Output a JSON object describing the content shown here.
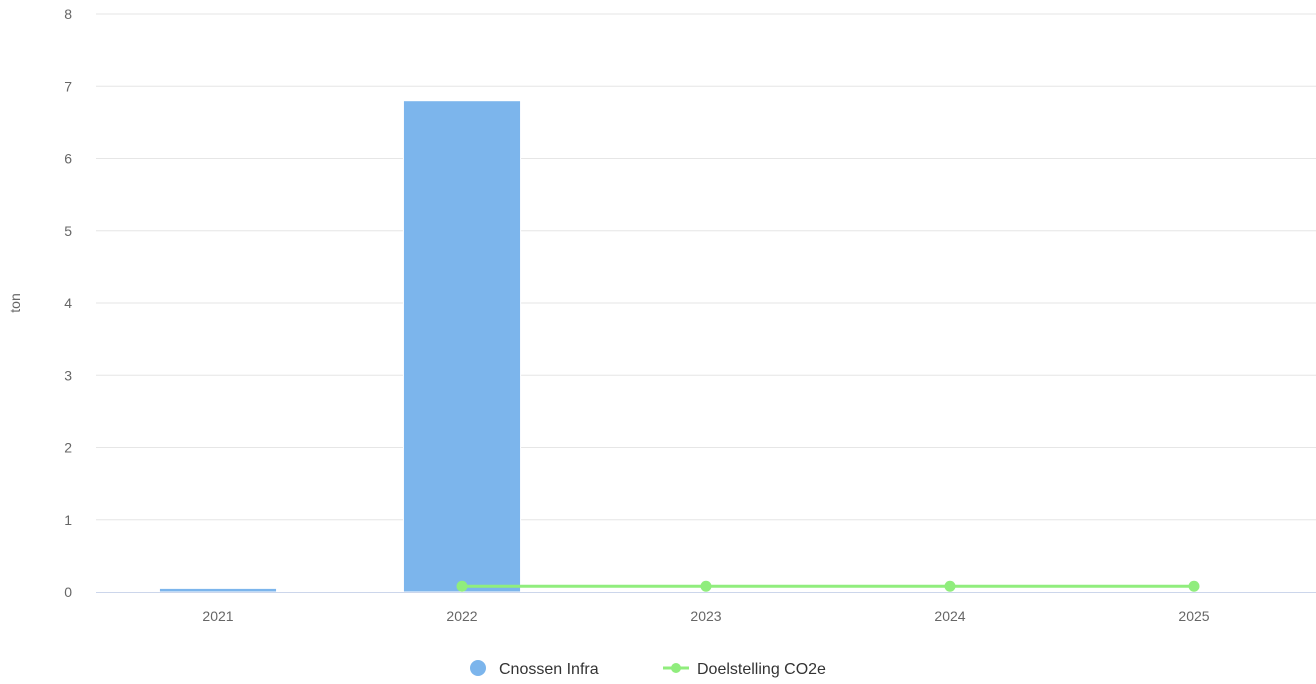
{
  "chart_data": {
    "type": "bar",
    "title": "",
    "xlabel": "",
    "ylabel": "ton",
    "ylim": [
      0,
      8
    ],
    "yticks": [
      0,
      1,
      2,
      3,
      4,
      5,
      6,
      7,
      8
    ],
    "categories": [
      "2021",
      "2022",
      "2023",
      "2024",
      "2025"
    ],
    "grid": true,
    "legend_position": "bottom-center",
    "series": [
      {
        "name": "Cnossen Infra",
        "type": "bar",
        "color": "#7cb5ec",
        "values": [
          0.05,
          6.8,
          null,
          null,
          null
        ]
      },
      {
        "name": "Doelstelling CO2e",
        "type": "line",
        "color": "#90ed7d",
        "values": [
          null,
          0.08,
          0.08,
          0.08,
          0.08
        ]
      }
    ]
  }
}
